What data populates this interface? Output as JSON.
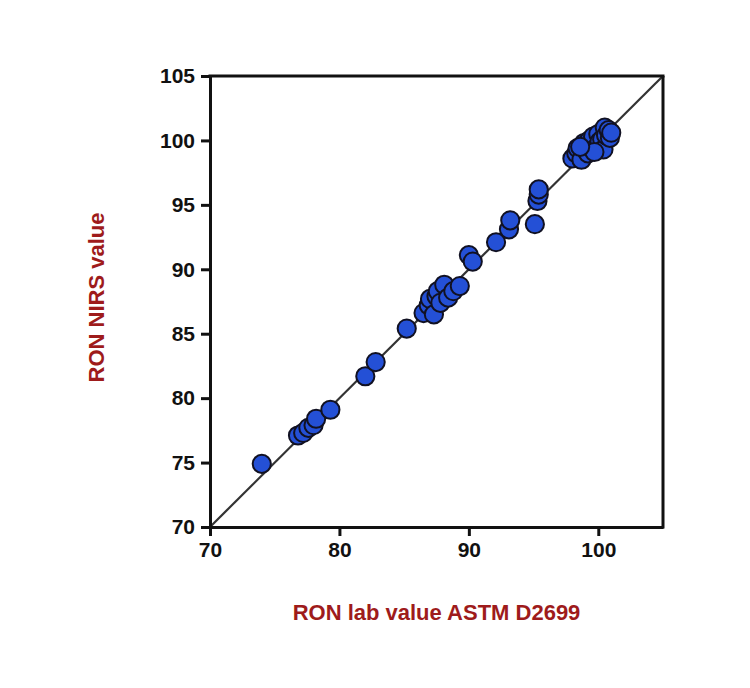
{
  "chart_data": {
    "type": "scatter",
    "x_label": "RON lab value ASTM D2699",
    "y_label": "RON NIRS value",
    "color": "#2450d6",
    "marker": "circle",
    "grid": false,
    "xlim": [
      70,
      105
    ],
    "ylim": [
      70,
      105
    ],
    "xticks": [
      70,
      80,
      90,
      100
    ],
    "yticks": [
      70,
      75,
      80,
      85,
      90,
      95,
      100,
      105
    ],
    "x": [
      74.0,
      76.8,
      77.2,
      77.6,
      78.0,
      78.2,
      79.3,
      82.0,
      82.8,
      85.2,
      86.5,
      86.9,
      87.0,
      87.3,
      87.5,
      87.6,
      87.8,
      88.1,
      88.4,
      88.8,
      89.3,
      90.0,
      90.3,
      92.1,
      93.1,
      93.2,
      95.1,
      95.3,
      95.4,
      95.4,
      98.0,
      98.3,
      98.4,
      98.7,
      98.9,
      99.1,
      99.3,
      99.5,
      99.6,
      99.8,
      100.0,
      100.1,
      100.3,
      100.4,
      100.5,
      100.6,
      100.8,
      100.9,
      101.0,
      99.2,
      99.7,
      98.6
    ],
    "values": [
      74.9,
      77.1,
      77.3,
      77.7,
      77.9,
      78.4,
      79.1,
      81.7,
      82.8,
      85.4,
      86.6,
      87.2,
      87.7,
      86.5,
      87.9,
      88.3,
      87.4,
      88.8,
      87.8,
      88.3,
      88.7,
      91.1,
      90.6,
      92.1,
      93.1,
      93.8,
      93.5,
      95.3,
      95.8,
      96.2,
      98.6,
      99.0,
      99.4,
      98.5,
      99.8,
      99.2,
      100.0,
      99.6,
      100.3,
      99.4,
      100.5,
      99.9,
      100.1,
      99.3,
      101.0,
      100.4,
      100.8,
      100.2,
      100.6,
      99.0,
      99.1,
      99.5
    ]
  }
}
